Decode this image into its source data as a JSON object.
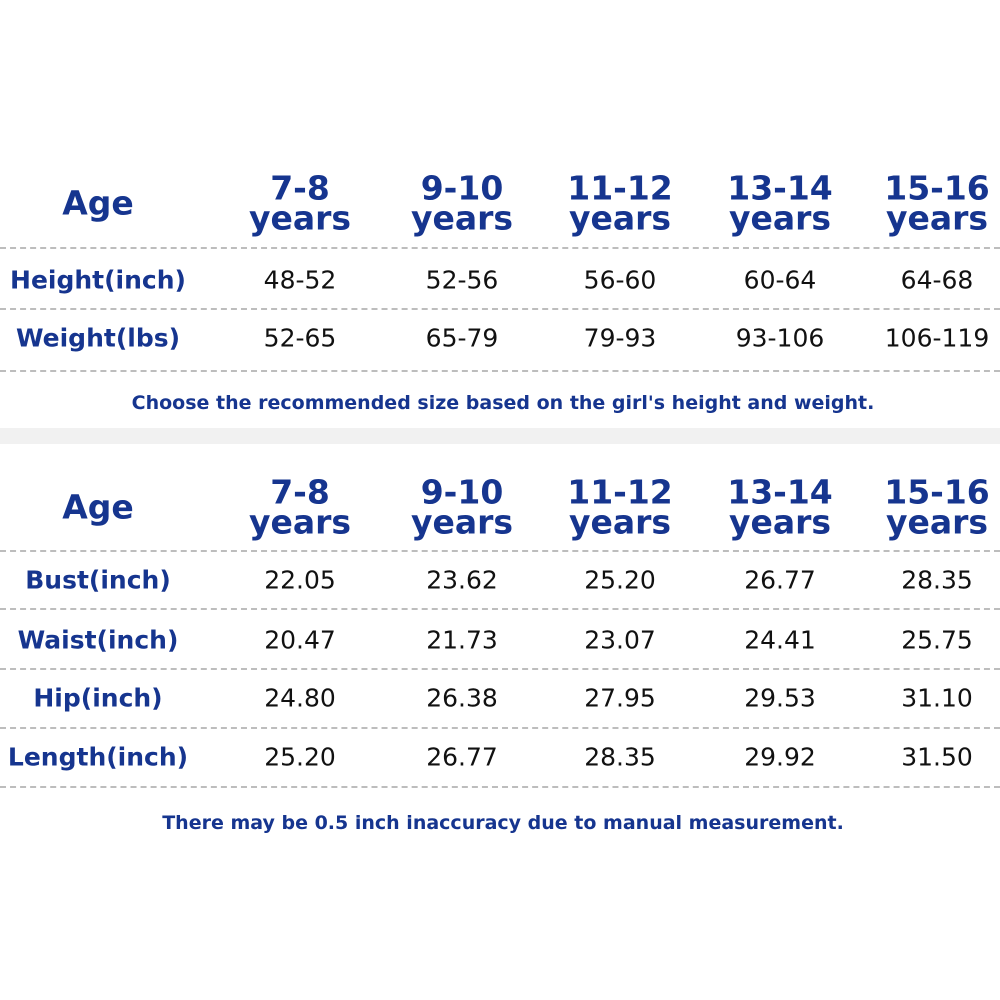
{
  "tables": [
    {
      "header": [
        "Age",
        [
          "7-8",
          "years"
        ],
        [
          "9-10",
          "years"
        ],
        [
          "11-12",
          "years"
        ],
        [
          "13-14",
          "years"
        ],
        [
          "15-16",
          "years"
        ]
      ],
      "rows": [
        [
          "Height(inch)",
          "48-52",
          "52-56",
          "56-60",
          "60-64",
          "64-68"
        ],
        [
          "Weight(lbs)",
          "52-65",
          "65-79",
          "79-93",
          "93-106",
          "106-119"
        ]
      ],
      "note": "Choose the recommended size based on the girl's height and weight."
    },
    {
      "header": [
        "Age",
        [
          "7-8",
          "years"
        ],
        [
          "9-10",
          "years"
        ],
        [
          "11-12",
          "years"
        ],
        [
          "13-14",
          "years"
        ],
        [
          "15-16",
          "years"
        ]
      ],
      "rows": [
        [
          "Bust(inch)",
          "22.05",
          "23.62",
          "25.20",
          "26.77",
          "28.35"
        ],
        [
          "Waist(inch)",
          "20.47",
          "21.73",
          "23.07",
          "24.41",
          "25.75"
        ],
        [
          "Hip(inch)",
          "24.80",
          "26.38",
          "27.95",
          "29.53",
          "31.10"
        ],
        [
          "Length(inch)",
          "25.20",
          "26.77",
          "28.35",
          "29.92",
          "31.50"
        ]
      ],
      "note": "There may be 0.5 inch inaccuracy due to manual measurement."
    }
  ]
}
